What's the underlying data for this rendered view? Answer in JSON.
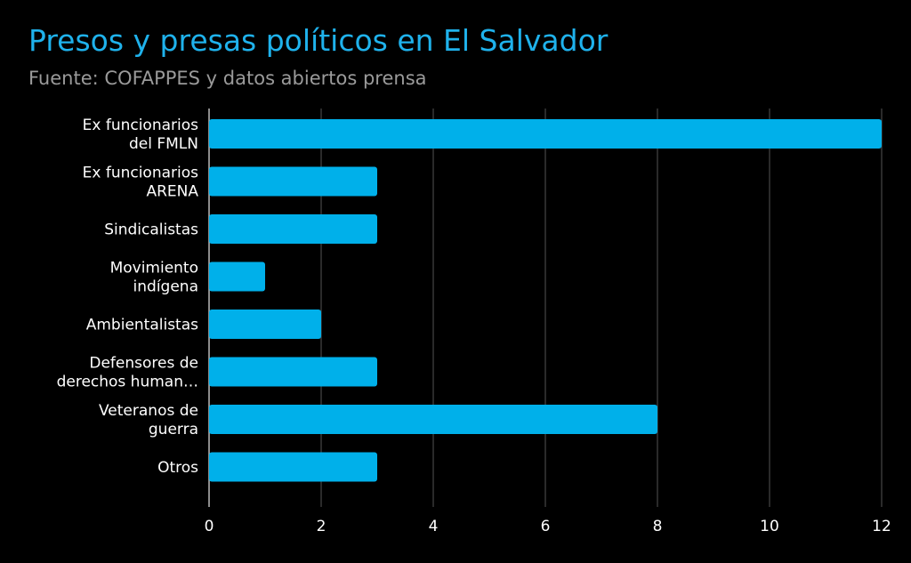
{
  "chart_data": {
    "type": "bar",
    "orientation": "horizontal",
    "title": "Presos y presas políticos en El Salvador",
    "subtitle": "Fuente: COFAPPES y datos abiertos prensa",
    "categories": [
      [
        "Ex funcionarios",
        "del FMLN"
      ],
      [
        "Ex funcionarios",
        "ARENA"
      ],
      [
        "Sindicalistas"
      ],
      [
        "Movimiento",
        "indígena"
      ],
      [
        "Ambientalistas"
      ],
      [
        "Defensores de",
        "derechos human…"
      ],
      [
        "Veteranos de",
        "guerra"
      ],
      [
        "Otros"
      ]
    ],
    "values": [
      12,
      3,
      3,
      1,
      2,
      3,
      8,
      3
    ],
    "xlim": [
      0,
      12
    ],
    "xticks": [
      0,
      2,
      4,
      6,
      8,
      10,
      12
    ],
    "grid": true,
    "colors": {
      "bar": "#00b0ea",
      "background": "#000000",
      "grid": "#555555",
      "text": "#ffffff",
      "title": "#1fb2ec",
      "subtitle": "#9a9a9a"
    }
  }
}
